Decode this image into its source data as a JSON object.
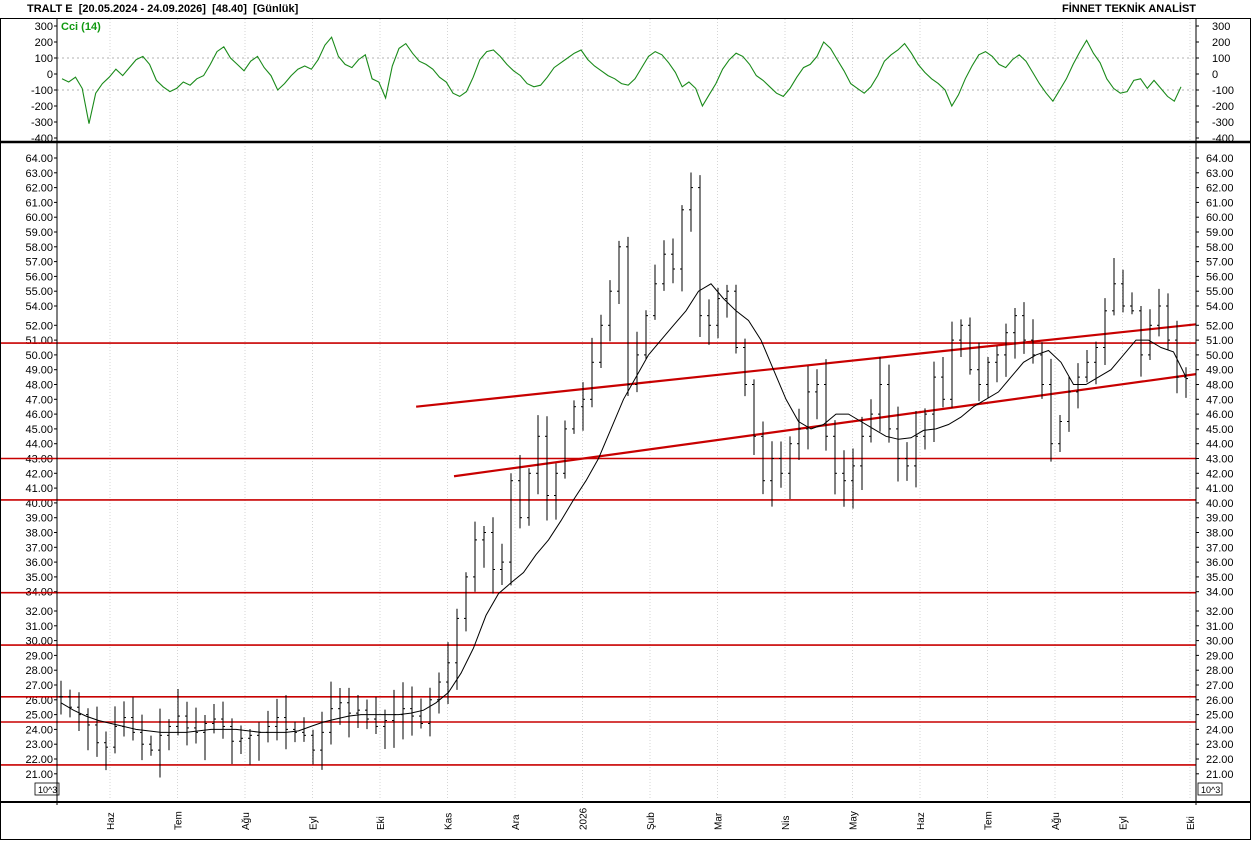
{
  "header": {
    "symbol": "TRALT E",
    "range": "[20.05.2024 - 24.09.2026]",
    "last": "[48.40]",
    "period": "[Günlük]",
    "brand": "FİNNET TEKNİK ANALİST"
  },
  "chart_data": [
    {
      "type": "line",
      "name": "cci-panel",
      "series_label": "Cci (14)",
      "color": "#1a8a1a",
      "ylim": [
        -400,
        300
      ],
      "yticks": [
        300,
        200,
        100,
        0,
        -100,
        -200,
        -300,
        -400
      ],
      "reference_lines": [
        100,
        -100
      ],
      "values": [
        -30,
        -50,
        -20,
        -90,
        -310,
        -120,
        -60,
        -20,
        30,
        -10,
        40,
        90,
        110,
        60,
        -40,
        -80,
        -110,
        -90,
        -50,
        -70,
        -30,
        -10,
        60,
        140,
        170,
        100,
        60,
        20,
        80,
        110,
        40,
        -10,
        -100,
        -60,
        -10,
        30,
        50,
        30,
        90,
        180,
        230,
        110,
        60,
        40,
        90,
        120,
        -30,
        -50,
        -150,
        50,
        160,
        190,
        130,
        80,
        60,
        30,
        -20,
        -50,
        -120,
        -140,
        -110,
        -20,
        90,
        140,
        150,
        110,
        60,
        20,
        -10,
        -60,
        -80,
        -70,
        -20,
        40,
        70,
        100,
        130,
        150,
        90,
        50,
        20,
        -10,
        -30,
        -60,
        -70,
        -30,
        40,
        110,
        140,
        120,
        70,
        10,
        -80,
        -50,
        -90,
        -200,
        -130,
        -60,
        30,
        90,
        130,
        110,
        60,
        -10,
        -40,
        -80,
        -120,
        -140,
        -90,
        -20,
        40,
        60,
        110,
        200,
        160,
        90,
        20,
        -60,
        -90,
        -120,
        -80,
        -10,
        80,
        120,
        150,
        190,
        130,
        60,
        10,
        -30,
        -60,
        -100,
        -200,
        -130,
        -30,
        50,
        120,
        140,
        110,
        60,
        40,
        90,
        120,
        80,
        10,
        -60,
        -120,
        -170,
        -100,
        -30,
        60,
        140,
        210,
        130,
        70,
        -30,
        -90,
        -120,
        -110,
        -40,
        -30,
        -90,
        -40,
        -90,
        -140,
        -170,
        -80
      ]
    },
    {
      "type": "bar",
      "name": "price-panel",
      "subtype": "ohlc-bars-with-moving-average",
      "last_close": 48.4,
      "yticks": [
        64.0,
        63.0,
        62.0,
        61.0,
        60.0,
        59.0,
        58.0,
        57.0,
        56.0,
        55.0,
        54.0,
        52.0,
        51.0,
        50.0,
        49.0,
        48.0,
        47.0,
        46.0,
        45.0,
        44.0,
        43.0,
        42.0,
        41.0,
        40.0,
        39.0,
        38.0,
        37.0,
        36.0,
        35.0,
        34.0,
        32.0,
        31.0,
        30.0,
        29.0,
        28.0,
        27.0,
        26.0,
        25.0,
        24.0,
        23.0,
        22.0,
        21.0
      ],
      "ytick_labels": [
        "64.00",
        "63.00",
        "62.00",
        "61.00",
        "60.00",
        "59.00",
        "58.00",
        "57.00",
        "56.00",
        "55.00",
        "54.00",
        "52.00",
        "51.00",
        "50.00",
        "49.00",
        "48.00",
        "47.00",
        "46.00",
        "45.00",
        "44.00",
        "43.00",
        "42.00",
        "41.00",
        "40.00",
        "39.00",
        "38.00",
        "37.00",
        "36.00",
        "35.00",
        "34.00",
        "32.00",
        "31.00",
        "30.00",
        "29.00",
        "28.00",
        "27.00",
        "26.00",
        "25.00",
        "24.00",
        "23.00",
        "22.00",
        "21.00"
      ],
      "scale_badge": "10^3",
      "x_labels": [
        "Haz",
        "Tem",
        "Ağu",
        "Eyl",
        "Eki",
        "Kas",
        "Ara",
        "2026",
        "Şub",
        "Mar",
        "Nis",
        "May",
        "Haz",
        "Tem",
        "Ağu",
        "Eyl",
        "Eki"
      ],
      "horizontal_levels": [
        50.8,
        43.0,
        40.2,
        33.9,
        29.7,
        26.2,
        24.5,
        21.6
      ],
      "channel_upper": {
        "from": [
          47.0,
          46.5
        ],
        "to": [
          147.0,
          52.1
        ]
      },
      "channel_lower": {
        "from": [
          52.0,
          41.8
        ],
        "to": [
          147.0,
          48.7
        ]
      },
      "close": [
        26.2,
        25.5,
        25.0,
        24.3,
        23.1,
        22.8,
        24.2,
        24.8,
        23.8,
        23.0,
        22.6,
        23.6,
        24.2,
        24.9,
        24.1,
        23.8,
        24.4,
        24.7,
        24.2,
        23.2,
        23.4,
        23.6,
        23.8,
        24.2,
        24.8,
        24.0,
        23.8,
        23.6,
        22.6,
        23.8,
        25.4,
        25.8,
        25.1,
        25.3,
        24.7,
        24.2,
        24.6,
        25.0,
        25.4,
        24.9,
        24.4,
        26.0,
        27.2,
        28.5,
        31.5,
        35.0,
        37.5,
        38.0,
        35.5,
        36.0,
        41.5,
        39.0,
        42.0,
        44.5,
        40.5,
        42.0,
        45.0,
        46.5,
        47.0,
        49.5,
        52.0,
        55.0,
        58.0,
        48.0,
        50.0,
        53.0,
        55.5,
        57.5,
        56.5,
        60.5,
        62.0,
        53.0,
        52.0,
        54.5,
        55.0,
        50.5,
        48.0,
        44.5,
        41.5,
        43.0,
        42.0,
        44.0,
        45.0,
        47.5,
        48.0,
        44.5,
        42.0,
        41.5,
        42.5,
        44.5,
        46.0,
        48.0,
        45.0,
        43.0,
        42.5,
        44.5,
        46.0,
        48.5,
        47.0,
        51.0,
        52.0,
        49.0,
        48.0,
        49.5,
        50.0,
        51.5,
        53.0,
        51.0,
        50.0,
        48.0,
        44.0,
        45.5,
        47.5,
        48.5,
        49.5,
        50.5,
        53.5,
        55.5,
        54.0,
        53.5,
        50.0,
        52.0,
        54.0,
        51.0,
        48.5,
        48.4
      ],
      "ma": [
        25.8,
        25.3,
        24.9,
        24.6,
        24.4,
        24.2,
        24.0,
        23.9,
        23.8,
        23.8,
        23.8,
        23.9,
        24.0,
        24.0,
        24.0,
        23.9,
        23.8,
        23.8,
        23.8,
        23.9,
        24.2,
        24.5,
        24.7,
        24.9,
        25.0,
        25.0,
        25.0,
        25.0,
        25.1,
        25.3,
        25.8,
        26.5,
        27.8,
        29.5,
        31.7,
        33.8,
        34.6,
        35.3,
        36.5,
        37.5,
        38.8,
        40.2,
        41.5,
        43.0,
        45.0,
        47.0,
        48.5,
        50.0,
        51.0,
        52.0,
        53.5,
        55.0,
        55.5,
        54.5,
        53.5,
        52.5,
        51.0,
        49.0,
        47.0,
        45.5,
        45.0,
        45.3,
        46.0,
        46.0,
        45.5,
        45.0,
        44.5,
        44.3,
        44.4,
        44.9,
        45.0,
        45.3,
        45.8,
        46.5,
        47.0,
        47.5,
        48.5,
        49.5,
        50.0,
        50.3,
        49.5,
        48.0,
        48.0,
        48.5,
        49.0,
        50.0,
        51.0,
        51.0,
        50.5,
        50.2,
        48.5
      ]
    }
  ]
}
